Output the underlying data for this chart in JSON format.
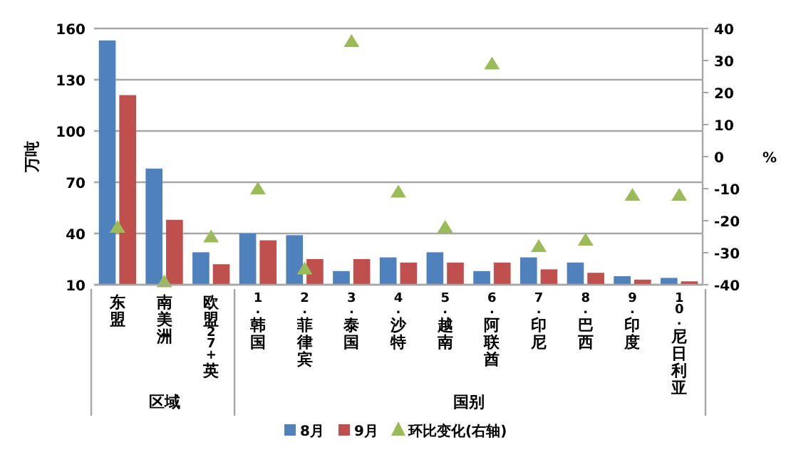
{
  "chart_data": {
    "type": "bar",
    "ylabel": "万吨",
    "y2label": "%",
    "categories": [
      "东盟",
      "南美洲",
      "欧盟27+英",
      "1.韩国",
      "2.菲律宾",
      "3.泰国",
      "4.沙特",
      "5.越南",
      "6.阿联酋",
      "7.印尼",
      "8.巴西",
      "9.印度",
      "10.尼日利亚"
    ],
    "series": [
      {
        "name": "8月",
        "color": "#4f81bd",
        "values": [
          153,
          78,
          29,
          40,
          39,
          18,
          26,
          29,
          18,
          26,
          23,
          15,
          14
        ]
      },
      {
        "name": "9月",
        "color": "#c0504d",
        "values": [
          121,
          48,
          22,
          36,
          25,
          25,
          23,
          23,
          23,
          19,
          17,
          13,
          12
        ]
      },
      {
        "name": "环比变化(右轴)",
        "color": "#9bbb59",
        "type": "scatter",
        "axis": "y2",
        "marker": "triangle",
        "values": [
          -22,
          -39,
          -25,
          -10,
          -35,
          36,
          -11,
          -22,
          29,
          -28,
          -26,
          -12,
          -12
        ]
      }
    ],
    "ylim": [
      10,
      160
    ],
    "yticks": [
      10,
      40,
      70,
      100,
      130,
      160
    ],
    "y2lim": [
      -40,
      40
    ],
    "y2ticks": [
      -40,
      -30,
      -20,
      -10,
      0,
      10,
      20,
      30,
      40
    ],
    "grid": "y",
    "legend": "bottom",
    "annotations": [
      "区域",
      "国别"
    ]
  }
}
